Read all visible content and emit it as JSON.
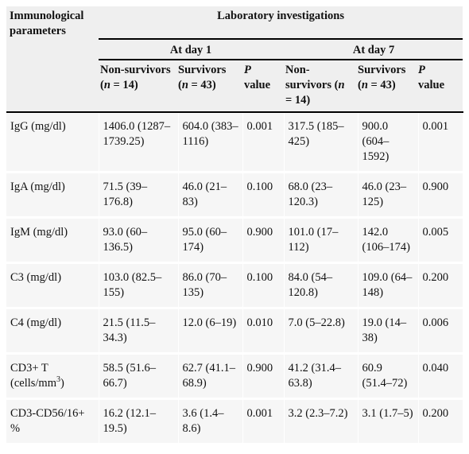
{
  "table": {
    "param_header": "Immunological parameters",
    "group_header": "Laboratory investigations",
    "day1_label": "At day 1",
    "day7_label": "At day 7",
    "columns": {
      "nonsurv_day1": "Non-survivors (n = 14)",
      "surv_day1": "Survivors (n = 43)",
      "p_day1": "P value",
      "nonsurv_day7": "Non-survivors (n = 14)",
      "surv_day7": "Survivors (n = 43)",
      "p_day7": "P value"
    },
    "rows": [
      {
        "param": "IgG (mg/dl)",
        "ns1": "1406.0 (1287–1739.25)",
        "s1": "604.0 (383–1116)",
        "p1": "0.001",
        "ns7": "317.5 (185–425)",
        "s7": "900.0 (604–1592)",
        "p7": "0.001"
      },
      {
        "param": "IgA (mg/dl)",
        "ns1": "71.5 (39–176.8)",
        "s1": "46.0 (21–83)",
        "p1": "0.100",
        "ns7": "68.0 (23–120.3)",
        "s7": "46.0 (23–125)",
        "p7": "0.900"
      },
      {
        "param": "IgM (mg/dl)",
        "ns1": "93.0 (60–136.5)",
        "s1": "95.0 (60–174)",
        "p1": "0.900",
        "ns7": "101.0 (17–112)",
        "s7": "142.0 (106–174)",
        "p7": "0.005"
      },
      {
        "param": "C3 (mg/dl)",
        "ns1": "103.0 (82.5–155)",
        "s1": "86.0 (70–135)",
        "p1": "0.100",
        "ns7": "84.0 (54–120.8)",
        "s7": "109.0 (64–148)",
        "p7": "0.200"
      },
      {
        "param": "C4 (mg/dl)",
        "ns1": "21.5 (11.5–34.3)",
        "s1": "12.0 (6–19)",
        "p1": "0.010",
        "ns7": "7.0 (5–22.8)",
        "s7": "19.0 (14–38)",
        "p7": "0.006"
      },
      {
        "param_main": "CD3+ T",
        "param_unit_pre": "(cells/mm",
        "param_sup": "3",
        "param_unit_post": ")",
        "ns1": "58.5 (51.6–66.7)",
        "s1": "62.7 (41.1–68.9)",
        "p1": "0.900",
        "ns7": "41.2 (31.4–63.8)",
        "s7": "60.9 (51.4–72)",
        "p7": "0.040"
      },
      {
        "param": "CD3-CD56/16+ %",
        "ns1": "16.2 (12.1–19.5)",
        "s1": "3.6 (1.4–8.6)",
        "p1": "0.001",
        "ns7": "3.2 (2.3–7.2)",
        "s7": "3.1 (1.7–5)",
        "p7": "0.200"
      }
    ]
  }
}
